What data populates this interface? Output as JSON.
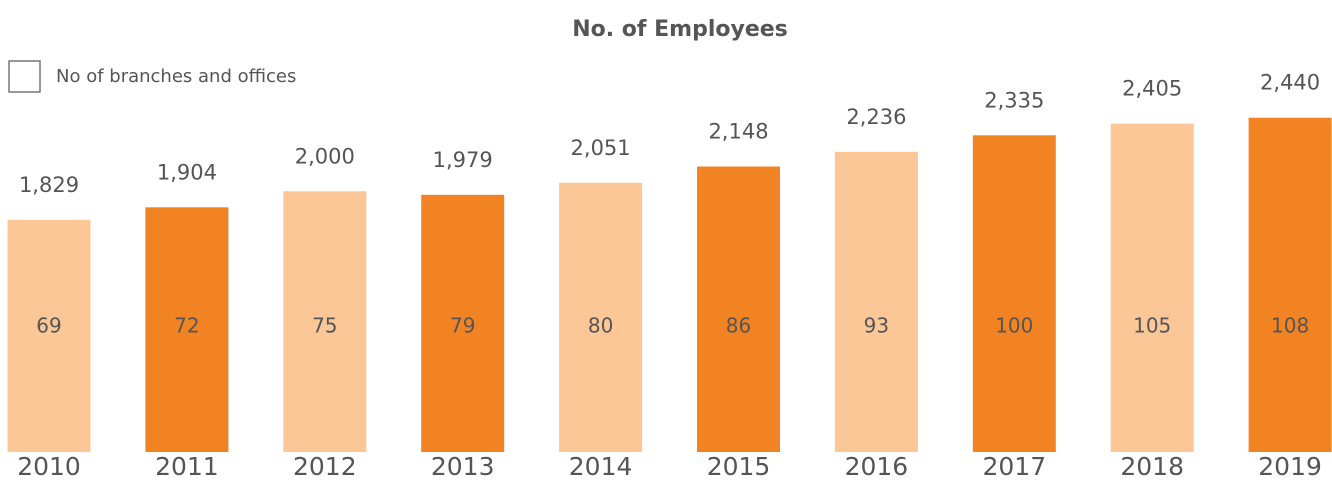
{
  "chart_data": {
    "type": "bar",
    "title": "No. of Employees",
    "categories": [
      "2010",
      "2011",
      "2012",
      "2013",
      "2014",
      "2015",
      "2016",
      "2017",
      "2018",
      "2019"
    ],
    "series": [
      {
        "name": "No. of Employees",
        "colors": [
          "#fcc797",
          "#f28322",
          "#fcc797",
          "#f28322",
          "#fcc797",
          "#f28322",
          "#fcc797",
          "#f28322",
          "#fcc797",
          "#f28322"
        ],
        "values": [
          1829,
          1904,
          2000,
          1979,
          2051,
          2148,
          2236,
          2335,
          2405,
          2440
        ],
        "value_labels": [
          "1,829",
          "1,904",
          "2,000",
          "1,979",
          "2,051",
          "2,148",
          "2,236",
          "2,335",
          "2,405",
          "2,440"
        ]
      },
      {
        "name": "No of branches and offices",
        "values": [
          69,
          72,
          75,
          79,
          80,
          86,
          93,
          100,
          105,
          108
        ]
      }
    ],
    "ylim": [
      440,
      2600
    ],
    "legend": "top-left"
  }
}
